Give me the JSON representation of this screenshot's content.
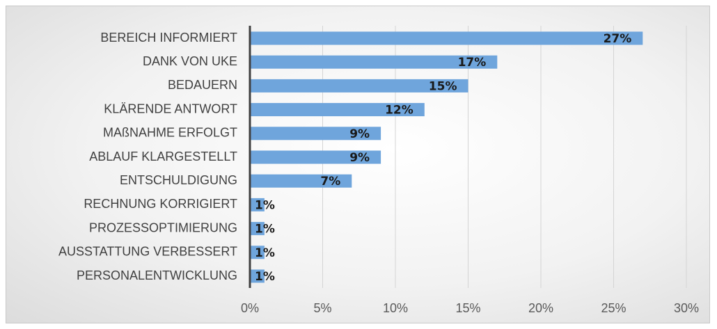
{
  "chart_data": {
    "type": "bar",
    "orientation": "horizontal",
    "title": "",
    "xlabel": "",
    "ylabel": "",
    "categories": [
      "BEREICH INFORMIERT",
      "DANK VON UKE",
      "BEDAUERN",
      "KLÄRENDE ANTWORT",
      "MAßNAHME ERFOLGT",
      "ABLAUF KLARGESTELLT",
      "ENTSCHULDIGUNG",
      "RECHNUNG KORRIGIERT",
      "PROZESSOPTIMIERUNG",
      "AUSSTATTUNG VERBESSERT",
      "PERSONALENTWICKLUNG"
    ],
    "values": [
      27,
      17,
      15,
      12,
      9,
      9,
      7,
      1,
      1,
      1,
      1
    ],
    "data_labels": [
      "27%",
      "17%",
      "15%",
      "12%",
      "9%",
      "9%",
      "7%",
      "1%",
      "1%",
      "1%",
      "1%"
    ],
    "xlim": [
      0,
      30
    ],
    "x_ticks": [
      0,
      5,
      10,
      15,
      20,
      25,
      30
    ],
    "x_tick_labels": [
      "0%",
      "5%",
      "10%",
      "15%",
      "20%",
      "25%",
      "30%"
    ],
    "grid": "vertical",
    "legend": "none",
    "bar_color": "#6fa5dc",
    "axis_color": "#404040",
    "grid_color": "#d4d4d4"
  }
}
